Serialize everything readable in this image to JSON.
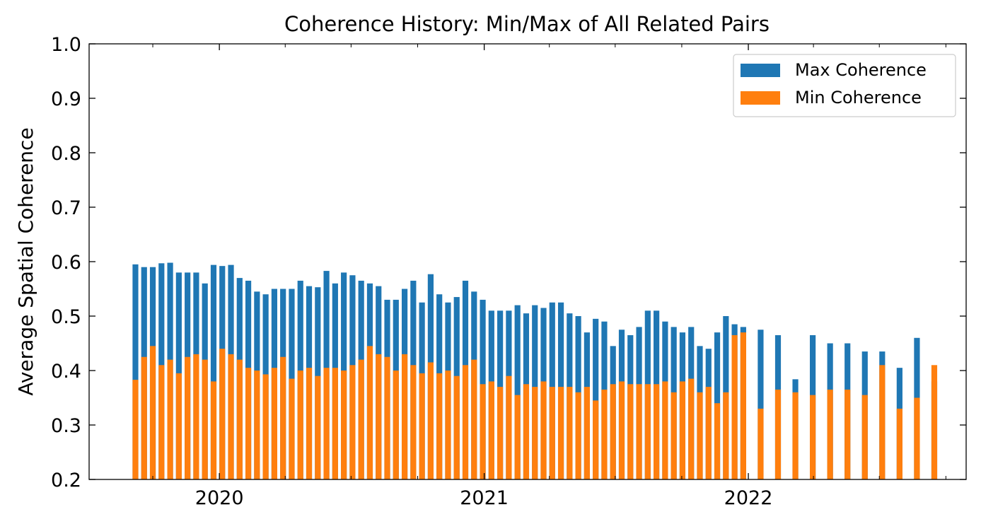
{
  "chart_data": {
    "type": "bar",
    "stacked": "overlay",
    "title": "Coherence History: Min/Max of All Related Pairs",
    "xlabel": "",
    "ylabel": "Average Spatial Coherence",
    "ylim": [
      0.2,
      1.0
    ],
    "yticks": [
      "0.2",
      "0.3",
      "0.4",
      "0.5",
      "0.6",
      "0.7",
      "0.8",
      "0.9",
      "1.0"
    ],
    "xlim": [
      "2019-07-05",
      "2022-10-29"
    ],
    "xticks": [
      "2020",
      "2021",
      "2022"
    ],
    "xtick_dates": [
      "2020-01-01",
      "2021-01-01",
      "2022-01-01"
    ],
    "bar_width_days": 8,
    "legend": {
      "position": "top-right",
      "entries": [
        "Max Coherence",
        "Min Coherence"
      ]
    },
    "colors": {
      "max": "#1f77b4",
      "min": "#ff7f0e"
    },
    "dates": [
      "2019-09-07",
      "2019-09-19",
      "2019-10-01",
      "2019-10-13",
      "2019-10-25",
      "2019-11-06",
      "2019-11-18",
      "2019-11-30",
      "2019-12-12",
      "2019-12-24",
      "2020-01-05",
      "2020-01-17",
      "2020-01-29",
      "2020-02-10",
      "2020-02-22",
      "2020-03-05",
      "2020-03-17",
      "2020-03-29",
      "2020-04-10",
      "2020-04-22",
      "2020-05-04",
      "2020-05-16",
      "2020-05-28",
      "2020-06-09",
      "2020-06-21",
      "2020-07-03",
      "2020-07-15",
      "2020-07-27",
      "2020-08-08",
      "2020-08-20",
      "2020-09-01",
      "2020-09-13",
      "2020-09-25",
      "2020-10-07",
      "2020-10-19",
      "2020-10-31",
      "2020-11-12",
      "2020-11-24",
      "2020-12-06",
      "2020-12-18",
      "2020-12-30",
      "2021-01-11",
      "2021-01-23",
      "2021-02-04",
      "2021-02-16",
      "2021-02-28",
      "2021-03-12",
      "2021-03-24",
      "2021-04-05",
      "2021-04-17",
      "2021-04-29",
      "2021-05-11",
      "2021-05-23",
      "2021-06-04",
      "2021-06-16",
      "2021-06-28",
      "2021-07-10",
      "2021-07-22",
      "2021-08-03",
      "2021-08-15",
      "2021-08-27",
      "2021-09-08",
      "2021-09-20",
      "2021-10-02",
      "2021-10-14",
      "2021-10-26",
      "2021-11-07",
      "2021-11-19",
      "2021-12-01",
      "2021-12-13",
      "2021-12-25",
      "2022-01-18",
      "2022-02-11",
      "2022-03-07",
      "2022-03-31",
      "2022-04-24",
      "2022-05-18",
      "2022-06-11",
      "2022-07-05",
      "2022-07-29",
      "2022-08-22",
      "2022-09-15"
    ],
    "series": [
      {
        "name": "Max Coherence",
        "values": [
          0.595,
          0.59,
          0.59,
          0.597,
          0.598,
          0.58,
          0.58,
          0.58,
          0.56,
          0.594,
          0.592,
          0.594,
          0.57,
          0.565,
          0.545,
          0.54,
          0.55,
          0.55,
          0.55,
          0.565,
          0.555,
          0.553,
          0.583,
          0.56,
          0.58,
          0.575,
          0.565,
          0.56,
          0.555,
          0.53,
          0.53,
          0.55,
          0.565,
          0.525,
          0.577,
          0.54,
          0.525,
          0.535,
          0.565,
          0.545,
          0.53,
          0.51,
          0.51,
          0.51,
          0.52,
          0.505,
          0.52,
          0.515,
          0.525,
          0.525,
          0.505,
          0.5,
          0.47,
          0.495,
          0.49,
          0.445,
          0.475,
          0.465,
          0.48,
          0.51,
          0.51,
          0.49,
          0.48,
          0.47,
          0.48,
          0.445,
          0.44,
          0.47,
          0.5,
          0.485,
          0.48,
          0.475,
          0.465,
          0.384,
          0.465,
          0.45,
          0.45,
          0.435,
          0.435,
          0.405,
          0.46,
          0.38
        ]
      },
      {
        "name": "Min Coherence",
        "values": [
          0.383,
          0.425,
          0.445,
          0.41,
          0.42,
          0.395,
          0.425,
          0.43,
          0.42,
          0.38,
          0.44,
          0.43,
          0.42,
          0.405,
          0.4,
          0.393,
          0.405,
          0.425,
          0.385,
          0.4,
          0.405,
          0.39,
          0.405,
          0.405,
          0.4,
          0.41,
          0.42,
          0.445,
          0.43,
          0.425,
          0.4,
          0.43,
          0.41,
          0.395,
          0.415,
          0.395,
          0.4,
          0.39,
          0.41,
          0.42,
          0.375,
          0.38,
          0.37,
          0.39,
          0.355,
          0.375,
          0.37,
          0.38,
          0.37,
          0.37,
          0.37,
          0.36,
          0.37,
          0.345,
          0.365,
          0.375,
          0.38,
          0.375,
          0.375,
          0.375,
          0.375,
          0.38,
          0.36,
          0.38,
          0.385,
          0.36,
          0.37,
          0.34,
          0.36,
          0.465,
          0.47,
          0.33,
          0.365,
          0.36,
          0.355,
          0.365,
          0.365,
          0.355,
          0.41,
          0.33,
          0.35,
          0.41
        ]
      }
    ]
  }
}
